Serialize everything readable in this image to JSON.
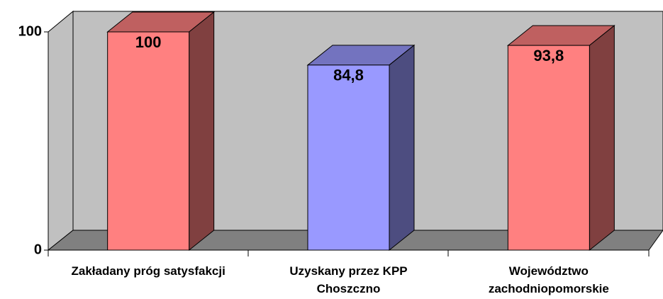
{
  "chart_data": {
    "type": "bar",
    "categories": [
      "Zakładany próg satysfakcji",
      "Uzyskany przez KPP Choszczno",
      "Województwo zachodniopomorskie"
    ],
    "values": [
      100,
      84.8,
      93.8
    ],
    "value_labels": [
      "100",
      "84,8",
      "93,8"
    ],
    "colors": [
      "#ff8080",
      "#9999ff",
      "#ff8080"
    ],
    "ylim": [
      0,
      100
    ],
    "yticks": [
      0,
      100
    ]
  }
}
